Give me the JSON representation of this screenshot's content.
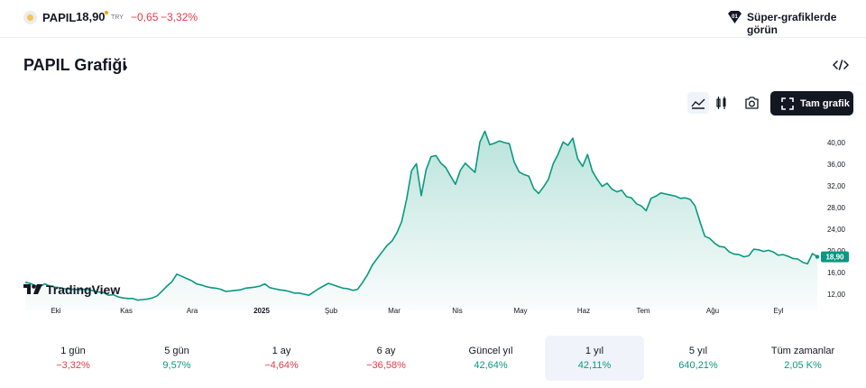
{
  "header": {
    "symbol": "PAPIL",
    "price": "18,90",
    "currency": "TRY",
    "change": "−0,65",
    "change_percent": "−3,32%",
    "super_charts_label": "Süper-grafiklerde görün"
  },
  "page": {
    "title": "PAPIL Grafiği",
    "chevron": "›"
  },
  "toolbar": {
    "fullscreen_label": "Tam grafik",
    "chart_style_selected": "area"
  },
  "brand": {
    "name": "TradingView"
  },
  "chart_data": {
    "type": "area",
    "title": "",
    "xlabel": "",
    "ylabel": "",
    "x_ticks": [
      "Eki",
      "Kas",
      "Ara",
      "2025",
      "Şub",
      "Mar",
      "Nis",
      "May",
      "Haz",
      "Tem",
      "Ağu",
      "Eyl"
    ],
    "y_ticks": [
      "40,00",
      "36,00",
      "32,00",
      "28,00",
      "24,00",
      "20,00",
      "16,00",
      "12,00"
    ],
    "ylim": [
      10,
      43
    ],
    "last_value_label": "18,90",
    "line_color": "#089981",
    "fill_color": "#089981",
    "values": [
      14.2,
      14.0,
      13.6,
      13.4,
      13.9,
      13.5,
      13.3,
      13.2,
      13.0,
      12.9,
      12.9,
      12.8,
      12.9,
      12.8,
      12.6,
      12.4,
      12.3,
      11.8,
      11.9,
      11.5,
      11.3,
      11.2,
      11.2,
      10.9,
      11.0,
      11.1,
      11.3,
      11.7,
      12.6,
      13.5,
      14.3,
      15.7,
      15.3,
      14.9,
      14.5,
      13.9,
      13.7,
      13.4,
      13.2,
      13.1,
      12.9,
      12.5,
      12.6,
      12.7,
      12.8,
      13.1,
      13.2,
      13.3,
      13.5,
      13.9,
      13.2,
      13.0,
      12.8,
      12.7,
      12.5,
      12.2,
      12.2,
      12.0,
      11.8,
      12.4,
      13.0,
      13.5,
      14.0,
      13.7,
      13.4,
      13.1,
      13.0,
      12.7,
      12.9,
      14.2,
      15.6,
      17.4,
      18.6,
      19.8,
      21.0,
      21.8,
      23.3,
      25.4,
      29.5,
      34.8,
      36.1,
      30.2,
      35.0,
      37.4,
      37.6,
      36.2,
      35.4,
      33.8,
      32.3,
      34.9,
      36.2,
      35.3,
      34.5,
      40.1,
      42.1,
      39.6,
      39.9,
      40.3,
      40.0,
      39.8,
      36.4,
      34.6,
      34.1,
      33.8,
      31.5,
      30.6,
      31.8,
      33.2,
      36.1,
      37.9,
      40.1,
      39.5,
      40.8,
      37.0,
      35.6,
      37.8,
      34.7,
      33.2,
      31.9,
      32.5,
      31.4,
      30.9,
      31.2,
      30.0,
      29.8,
      28.7,
      28.3,
      27.4,
      29.7,
      30.1,
      30.7,
      30.5,
      30.3,
      30.1,
      29.7,
      29.8,
      29.5,
      28.3,
      25.4,
      22.7,
      22.3,
      21.4,
      20.8,
      20.7,
      19.8,
      19.4,
      19.3,
      18.9,
      19.1,
      20.3,
      20.2,
      19.9,
      20.1,
      19.8,
      19.2,
      19.3,
      19.0,
      18.6,
      18.5,
      17.9,
      17.6,
      19.5,
      18.9
    ]
  },
  "periods": [
    {
      "label": "1 gün",
      "value": "−3,32%",
      "trend": "neg",
      "active": false
    },
    {
      "label": "5 gün",
      "value": "9,57%",
      "trend": "pos",
      "active": false
    },
    {
      "label": "1 ay",
      "value": "−4,64%",
      "trend": "neg",
      "active": false
    },
    {
      "label": "6 ay",
      "value": "−36,58%",
      "trend": "neg",
      "active": false
    },
    {
      "label": "Güncel yıl",
      "value": "42,64%",
      "trend": "pos",
      "active": false
    },
    {
      "label": "1 yıl",
      "value": "42,11%",
      "trend": "pos",
      "active": true
    },
    {
      "label": "5 yıl",
      "value": "640,21%",
      "trend": "pos",
      "active": false
    },
    {
      "label": "Tüm zamanlar",
      "value": "2,05 K%",
      "trend": "pos",
      "active": false
    }
  ]
}
